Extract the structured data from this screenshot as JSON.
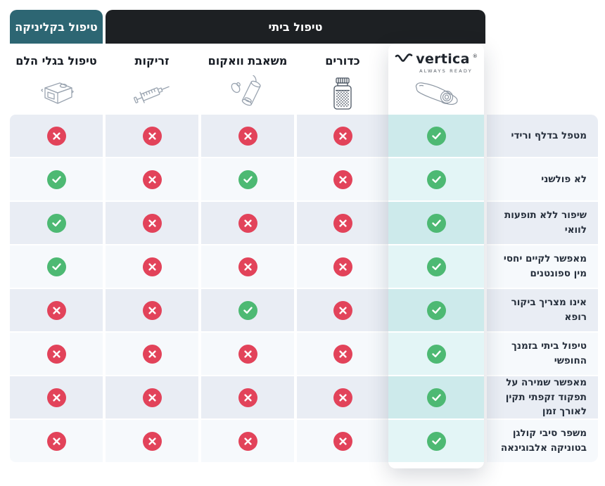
{
  "brand": {
    "name": "vertica",
    "registered": "®",
    "tagline": "ALWAYS READY",
    "logo_icon": "vertica-logo-swoosh-icon",
    "device_icon": "vertica-device-icon"
  },
  "tabs": [
    {
      "id": "clinic",
      "label": "טיפול בקליניקה"
    },
    {
      "id": "home",
      "label": "טיפול ביתי"
    }
  ],
  "columns": [
    {
      "id": "shockwave",
      "label": "טיפול בגלי הלם",
      "icon": "shockwave-machine-icon"
    },
    {
      "id": "injections",
      "label": "זריקות",
      "icon": "syringe-icon"
    },
    {
      "id": "vacuum",
      "label": "משאבת וואקום",
      "icon": "vacuum-pump-icon"
    },
    {
      "id": "pills",
      "label": "כדורים",
      "icon": "pill-bottle-icon"
    },
    {
      "id": "vertica",
      "label": "vertica",
      "icon": "vertica-device-icon"
    }
  ],
  "rows": [
    {
      "label": "מטפל בדלף ורידי",
      "values": [
        false,
        false,
        false,
        false,
        true
      ]
    },
    {
      "label": "לא פולשני",
      "values": [
        true,
        false,
        true,
        false,
        true
      ]
    },
    {
      "label": "שיפור ללא תופעות לוואי",
      "values": [
        true,
        false,
        false,
        false,
        true
      ]
    },
    {
      "label": "מאפשר לקיים יחסי מין ספונטנים",
      "values": [
        true,
        false,
        false,
        false,
        true
      ]
    },
    {
      "label": "אינו מצריך ביקור רופא",
      "values": [
        false,
        false,
        true,
        false,
        true
      ]
    },
    {
      "label": "טיפול ביתי בזמנך החופשי",
      "values": [
        false,
        false,
        false,
        false,
        true
      ]
    },
    {
      "label": "מאפשר שמירה על תפקוד זקפתי תקין לאורך זמן",
      "values": [
        false,
        false,
        false,
        false,
        true
      ]
    },
    {
      "label": "משפר סיבי קולגן בטוניקה אלבוגינאה",
      "values": [
        false,
        false,
        false,
        false,
        true
      ]
    }
  ],
  "status_icons": {
    "yes": "check-icon",
    "no": "cross-icon"
  },
  "colors": {
    "clinic_tab": "#2d6673",
    "home_tab": "#1d2023",
    "check_green": "#4db973",
    "cross_red": "#e2435a",
    "row_odd": "#e9edf4",
    "row_even": "#f6f9fc",
    "vertica_row_odd": "#cdeaeb",
    "vertica_row_even": "#e3f5f6",
    "card_background": "#ffffff"
  }
}
